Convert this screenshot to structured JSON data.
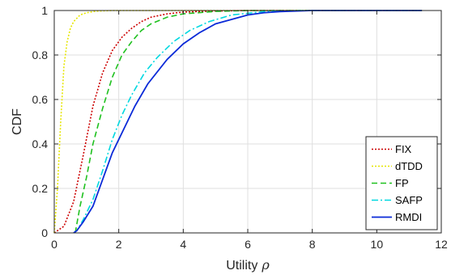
{
  "chart_data": {
    "type": "line",
    "xlabel": "Utility",
    "xlabel_symbol": "ρ",
    "ylabel": "CDF",
    "xlim": [
      0,
      12
    ],
    "ylim": [
      0,
      1
    ],
    "xticks": [
      0,
      2,
      4,
      6,
      8,
      10,
      12
    ],
    "yticks": [
      0,
      0.2,
      0.4,
      0.6,
      0.8,
      1
    ],
    "xtick_labels": [
      "0",
      "2",
      "4",
      "6",
      "8",
      "10",
      "12"
    ],
    "ytick_labels": [
      "0",
      "0.2",
      "0.4",
      "0.6",
      "0.8",
      "1"
    ],
    "grid": true,
    "legend_position": "bottom-right",
    "series": [
      {
        "name": "FIX",
        "color": "#cc0000",
        "dash": "dotted",
        "x": [
          0,
          0.3,
          0.6,
          0.9,
          1.2,
          1.5,
          1.8,
          2.1,
          2.4,
          2.7,
          3.0,
          3.5,
          4.0,
          5.0,
          6.0,
          11.4
        ],
        "y": [
          0,
          0.03,
          0.14,
          0.35,
          0.57,
          0.72,
          0.82,
          0.88,
          0.92,
          0.95,
          0.97,
          0.985,
          0.993,
          0.998,
          1,
          1
        ]
      },
      {
        "name": "dTDD",
        "color": "#e6e600",
        "dash": "dotted",
        "x": [
          0,
          0.1,
          0.2,
          0.3,
          0.4,
          0.5,
          0.6,
          0.8,
          1.0,
          1.3,
          1.8,
          11.4
        ],
        "y": [
          0,
          0.2,
          0.5,
          0.75,
          0.86,
          0.92,
          0.95,
          0.98,
          0.99,
          0.997,
          1,
          1
        ]
      },
      {
        "name": "FP",
        "color": "#1fc11f",
        "dash": "dashed",
        "x": [
          0.65,
          0.8,
          1.0,
          1.2,
          1.5,
          1.8,
          2.1,
          2.4,
          2.7,
          3.0,
          3.5,
          4.0,
          5.0,
          6.0,
          11.4
        ],
        "y": [
          0,
          0.12,
          0.25,
          0.4,
          0.56,
          0.7,
          0.8,
          0.86,
          0.91,
          0.94,
          0.97,
          0.985,
          0.996,
          1,
          1
        ]
      },
      {
        "name": "SAFP",
        "color": "#00d8e0",
        "dash": "dashdot",
        "x": [
          0.6,
          0.7,
          0.9,
          1.2,
          1.5,
          1.8,
          2.1,
          2.4,
          2.8,
          3.2,
          3.7,
          4.2,
          4.8,
          5.5,
          6.5,
          7.5,
          11.4
        ],
        "y": [
          0,
          0.01,
          0.06,
          0.15,
          0.28,
          0.42,
          0.53,
          0.62,
          0.72,
          0.79,
          0.86,
          0.91,
          0.95,
          0.98,
          0.995,
          1,
          1
        ]
      },
      {
        "name": "RMDI",
        "color": "#0a2ad8",
        "dash": "solid",
        "x": [
          0.6,
          0.7,
          0.9,
          1.2,
          1.5,
          1.8,
          2.2,
          2.5,
          2.9,
          3.5,
          4.0,
          4.5,
          5.0,
          5.5,
          6.0,
          6.5,
          7.0,
          8.0,
          11.4
        ],
        "y": [
          0,
          0.01,
          0.05,
          0.12,
          0.24,
          0.36,
          0.48,
          0.57,
          0.67,
          0.78,
          0.85,
          0.9,
          0.94,
          0.96,
          0.98,
          0.99,
          0.995,
          1,
          1
        ]
      }
    ]
  }
}
